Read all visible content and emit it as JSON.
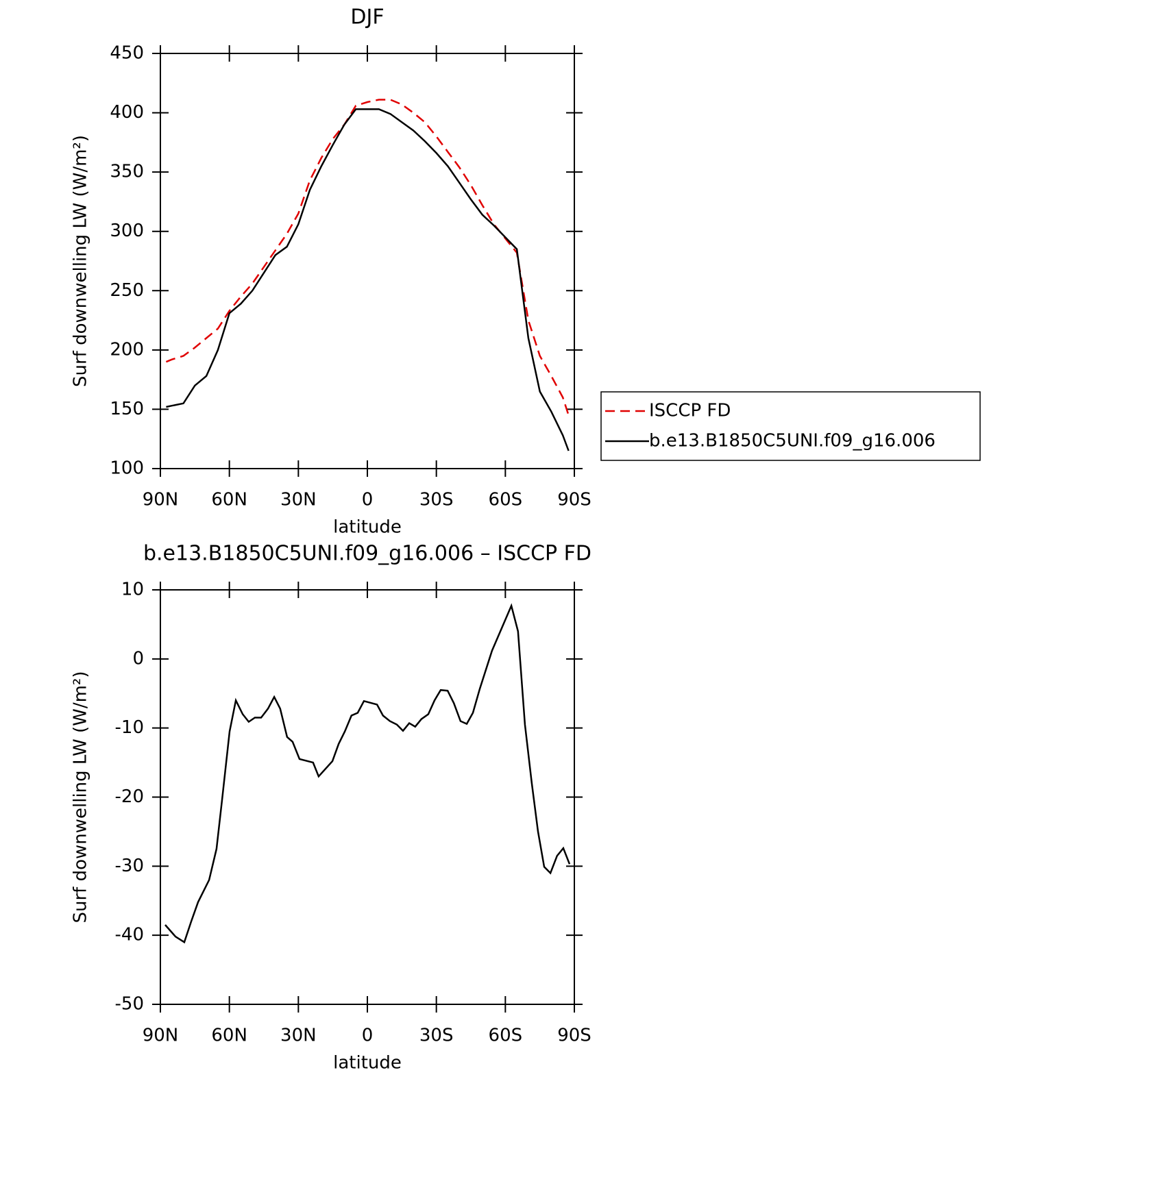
{
  "chart_data": [
    {
      "type": "line",
      "title": "DJF",
      "xlabel": "latitude",
      "ylabel": "Surf downwelling LW (W/m²)",
      "xlim": [
        90,
        -90
      ],
      "ylim": [
        100,
        450
      ],
      "xticks": [
        {
          "value": 90,
          "label": "90N"
        },
        {
          "value": 60,
          "label": "60N"
        },
        {
          "value": 30,
          "label": "30N"
        },
        0,
        {
          "value": -30,
          "label": "30S"
        },
        {
          "value": -60,
          "label": "60S"
        },
        {
          "value": -90,
          "label": "90S"
        }
      ],
      "yticks": [
        100,
        150,
        200,
        250,
        300,
        350,
        400,
        450
      ],
      "x": [
        87.5,
        85,
        80,
        75,
        70,
        65,
        60,
        55,
        50,
        45,
        40,
        35,
        30,
        25,
        20,
        15,
        10,
        5,
        0,
        -5,
        -10,
        -15,
        -20,
        -25,
        -30,
        -35,
        -40,
        -45,
        -50,
        -55,
        -60,
        -65,
        -70,
        -75,
        -80,
        -85,
        -87.5
      ],
      "legend": "right",
      "series": [
        {
          "name": "ISCCP FD",
          "color": "#e00000",
          "dashed": true,
          "values": [
            190,
            192,
            195,
            202,
            210,
            218,
            233,
            245,
            256,
            270,
            284,
            298,
            315,
            343,
            362,
            378,
            390,
            406,
            409,
            411,
            411,
            407,
            400,
            392,
            380,
            367,
            354,
            339,
            322,
            306,
            294,
            282,
            225,
            195,
            178,
            160,
            145
          ]
        },
        {
          "name": "b.e13.B1850C5UNI.f09_g16.006",
          "color": "#000000",
          "dashed": false,
          "values": [
            152,
            153,
            155,
            170,
            178,
            200,
            231,
            239,
            250,
            265,
            280,
            287,
            306,
            335,
            355,
            373,
            390,
            403,
            403,
            403,
            399,
            392,
            385,
            376,
            366,
            355,
            341,
            327,
            314,
            305,
            295,
            285,
            210,
            165,
            148,
            128,
            115
          ]
        }
      ]
    },
    {
      "type": "line",
      "title": "b.e13.B1850C5UNI.f09_g16.006 – ISCCP FD",
      "xlabel": "latitude",
      "ylabel": "Surf downwelling LW (W/m²)",
      "xlim": [
        90,
        -90
      ],
      "ylim": [
        -50,
        10
      ],
      "xticks": [
        {
          "value": 90,
          "label": "90N"
        },
        {
          "value": 60,
          "label": "60N"
        },
        {
          "value": 30,
          "label": "30N"
        },
        0,
        {
          "value": -30,
          "label": "30S"
        },
        {
          "value": -60,
          "label": "60S"
        },
        {
          "value": -90,
          "label": "90S"
        }
      ],
      "yticks": [
        -50,
        -40,
        -30,
        -20,
        -10,
        0,
        10
      ],
      "x": [
        87.9,
        83.4,
        79.6,
        76.6,
        73.6,
        68.8,
        65.6,
        63.2,
        59.9,
        57.2,
        54.2,
        51.6,
        48.9,
        46.2,
        43.2,
        40.5,
        37.9,
        34.9,
        32.5,
        29.5,
        23.6,
        21.2,
        15.2,
        12.5,
        9.8,
        6.9,
        4.2,
        1.5,
        -4.2,
        -6.8,
        -9.8,
        -12.8,
        -15.5,
        -18.2,
        -20.8,
        -23.5,
        -26.5,
        -29.2,
        -31.9,
        -34.9,
        -37.6,
        -40.5,
        -43.2,
        -45.9,
        -48.9,
        -54.2,
        -62.6,
        -65.5,
        -68.5,
        -71.5,
        -74.2,
        -76.9,
        -79.6,
        -82.5,
        -85.2,
        -87.9
      ],
      "series": [
        {
          "color": "#000000",
          "dashed": false,
          "values": [
            -38.5,
            -40.2,
            -41,
            -38,
            -35.2,
            -32,
            -27.5,
            -20.5,
            -10.5,
            -6,
            -8,
            -9.1,
            -8.5,
            -8.5,
            -7.2,
            -5.5,
            -7.2,
            -11.3,
            -12,
            -14.5,
            -15,
            -17,
            -14.8,
            -12.3,
            -10.5,
            -8.2,
            -7.8,
            -6.1,
            -6.6,
            -8.2,
            -9,
            -9.5,
            -10.4,
            -9.3,
            -9.8,
            -8.7,
            -8,
            -6,
            -4.5,
            -4.6,
            -6.4,
            -9,
            -9.4,
            -7.8,
            -4.3,
            1.2,
            7.7,
            4,
            -9.5,
            -18,
            -25,
            -30.1,
            -31,
            -28.5,
            -27.4,
            -29.7
          ]
        }
      ]
    }
  ]
}
